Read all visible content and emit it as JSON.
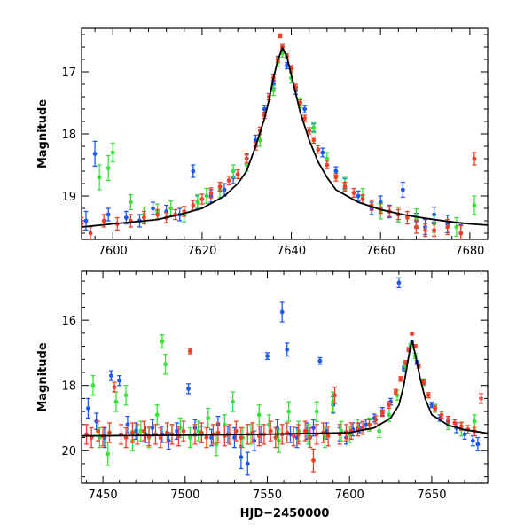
{
  "chart_data": [
    {
      "type": "scatter",
      "panel": "top",
      "title": "",
      "xlabel": "",
      "ylabel": "Magnitude",
      "xlim": [
        7593,
        7684
      ],
      "ylim": [
        19.7,
        16.3
      ],
      "y_inverted": true,
      "x_ticks": [
        7600,
        7620,
        7640,
        7660,
        7680
      ],
      "y_ticks": [
        17,
        18,
        19
      ],
      "grid": false,
      "legend": "none",
      "model_curve": {
        "name": "",
        "color": "#000000",
        "x": [
          7593,
          7600,
          7610,
          7615,
          7620,
          7625,
          7628,
          7630,
          7632,
          7634,
          7635,
          7636,
          7637,
          7638,
          7639,
          7640,
          7641,
          7642,
          7644,
          7646,
          7648,
          7650,
          7655,
          7660,
          7665,
          7670,
          7675,
          7680,
          7684
        ],
        "y": [
          19.5,
          19.45,
          19.38,
          19.3,
          19.2,
          19.0,
          18.8,
          18.6,
          18.2,
          17.75,
          17.45,
          17.1,
          16.8,
          16.62,
          16.75,
          17.05,
          17.35,
          17.65,
          18.1,
          18.45,
          18.7,
          18.9,
          19.1,
          19.22,
          19.3,
          19.36,
          19.41,
          19.45,
          19.47
        ]
      },
      "series": [
        {
          "name": "",
          "color": "#1e5af0",
          "x": [
            7594,
            7596,
            7599,
            7603,
            7606,
            7609,
            7612,
            7615,
            7618,
            7619,
            7622,
            7625,
            7627,
            7630,
            7632,
            7634,
            7636,
            7637,
            7638,
            7639,
            7641,
            7643,
            7645,
            7647,
            7650,
            7652,
            7655,
            7658,
            7660,
            7662,
            7664,
            7665,
            7668,
            7670,
            7672,
            7675,
            7678
          ],
          "y": [
            19.4,
            18.32,
            19.3,
            19.35,
            19.4,
            19.2,
            19.25,
            19.3,
            18.6,
            19.1,
            19.0,
            18.9,
            18.7,
            18.4,
            18.1,
            17.6,
            17.2,
            16.8,
            16.65,
            16.9,
            17.3,
            17.6,
            17.9,
            18.3,
            18.6,
            18.8,
            19.0,
            19.2,
            19.1,
            19.25,
            19.3,
            18.9,
            19.4,
            19.5,
            19.3,
            19.45,
            19.6
          ],
          "y_err": [
            0.15,
            0.2,
            0.1,
            0.1,
            0.1,
            0.1,
            0.1,
            0.1,
            0.1,
            0.1,
            0.1,
            0.1,
            0.1,
            0.08,
            0.08,
            0.06,
            0.06,
            0.05,
            0.05,
            0.05,
            0.06,
            0.06,
            0.06,
            0.07,
            0.07,
            0.08,
            0.08,
            0.1,
            0.1,
            0.1,
            0.12,
            0.12,
            0.12,
            0.12,
            0.12,
            0.14,
            0.14
          ]
        },
        {
          "name": "",
          "color": "#3ce03c",
          "x": [
            7597,
            7599,
            7600,
            7604,
            7607,
            7610,
            7613,
            7616,
            7619,
            7621,
            7624,
            7627,
            7630,
            7633,
            7636,
            7637,
            7638,
            7640,
            7642,
            7645,
            7648,
            7652,
            7656,
            7660,
            7664,
            7668,
            7672,
            7677,
            7681
          ],
          "y": [
            18.7,
            18.55,
            18.3,
            19.1,
            19.3,
            19.25,
            19.2,
            19.3,
            19.1,
            19.0,
            18.9,
            18.6,
            18.5,
            18.1,
            17.3,
            16.85,
            16.7,
            17.1,
            17.5,
            17.9,
            18.4,
            18.8,
            19.0,
            19.25,
            19.3,
            19.35,
            19.45,
            19.5,
            19.15
          ],
          "y_err": [
            0.2,
            0.2,
            0.15,
            0.12,
            0.12,
            0.12,
            0.12,
            0.12,
            0.12,
            0.12,
            0.12,
            0.1,
            0.1,
            0.1,
            0.08,
            0.06,
            0.06,
            0.08,
            0.08,
            0.08,
            0.1,
            0.1,
            0.12,
            0.12,
            0.12,
            0.14,
            0.14,
            0.15,
            0.15
          ]
        },
        {
          "name": "",
          "color": "#f0402a",
          "x": [
            7593,
            7595,
            7598,
            7601,
            7604,
            7607,
            7610,
            7612,
            7614,
            7616,
            7618,
            7620,
            7622,
            7624,
            7626,
            7628,
            7630,
            7632,
            7633,
            7634,
            7635,
            7636,
            7637,
            7637.5,
            7638,
            7639,
            7640,
            7641,
            7642,
            7643,
            7644,
            7645,
            7646,
            7648,
            7650,
            7652,
            7654,
            7656,
            7658,
            7660,
            7662,
            7664,
            7666,
            7668,
            7670,
            7672,
            7675,
            7678,
            7681
          ],
          "y": [
            19.45,
            19.6,
            19.4,
            19.45,
            19.4,
            19.35,
            19.3,
            19.35,
            19.3,
            19.25,
            19.15,
            19.05,
            18.95,
            18.85,
            18.75,
            18.65,
            18.4,
            18.2,
            17.95,
            17.7,
            17.4,
            17.1,
            16.8,
            16.42,
            16.6,
            16.75,
            16.95,
            17.25,
            17.5,
            17.75,
            17.95,
            18.1,
            18.25,
            18.5,
            18.7,
            18.85,
            18.95,
            19.05,
            19.15,
            19.2,
            19.25,
            19.3,
            19.35,
            19.5,
            19.55,
            19.55,
            19.5,
            19.6,
            18.4
          ],
          "y_err": [
            0.1,
            0.1,
            0.1,
            0.1,
            0.1,
            0.1,
            0.08,
            0.08,
            0.08,
            0.08,
            0.08,
            0.08,
            0.08,
            0.07,
            0.07,
            0.07,
            0.06,
            0.06,
            0.06,
            0.05,
            0.05,
            0.05,
            0.04,
            0.03,
            0.04,
            0.04,
            0.05,
            0.05,
            0.05,
            0.05,
            0.05,
            0.05,
            0.06,
            0.06,
            0.06,
            0.07,
            0.07,
            0.07,
            0.08,
            0.08,
            0.08,
            0.08,
            0.1,
            0.1,
            0.1,
            0.1,
            0.12,
            0.12,
            0.1
          ]
        }
      ]
    },
    {
      "type": "scatter",
      "panel": "bottom",
      "title": "",
      "xlabel": "HJD−2450000",
      "ylabel": "Magnitude",
      "xlim": [
        7437,
        7684
      ],
      "ylim": [
        21.0,
        14.5
      ],
      "y_inverted": true,
      "x_ticks": [
        7450,
        7500,
        7550,
        7600,
        7650
      ],
      "y_ticks": [
        16,
        18,
        20
      ],
      "grid": false,
      "legend": "none",
      "model_curve": {
        "name": "",
        "color": "#000000",
        "x": [
          7437,
          7500,
          7550,
          7600,
          7615,
          7625,
          7630,
          7633,
          7635,
          7637,
          7638,
          7640,
          7643,
          7646,
          7650,
          7660,
          7670,
          7684
        ],
        "y": [
          19.55,
          19.53,
          19.5,
          19.45,
          19.3,
          19.0,
          18.6,
          18.0,
          17.4,
          16.8,
          16.62,
          17.05,
          17.8,
          18.4,
          18.9,
          19.22,
          19.36,
          19.47
        ]
      },
      "series": [
        {
          "name": "",
          "color": "#1e5af0",
          "x": [
            7441,
            7446,
            7451,
            7455,
            7460,
            7465,
            7470,
            7476,
            7480,
            7486,
            7490,
            7495,
            7502,
            7506,
            7510,
            7516,
            7520,
            7526,
            7530,
            7534,
            7538,
            7542,
            7546,
            7550,
            7556,
            7559,
            7562,
            7564,
            7568,
            7574,
            7578,
            7582,
            7586,
            7590,
            7594,
            7598,
            7602,
            7606,
            7610,
            7615,
            7620,
            7625,
            7630,
            7633,
            7636,
            7638,
            7641,
            7645,
            7650,
            7655,
            7660,
            7665,
            7670,
            7675,
            7678
          ],
          "y": [
            18.7,
            19.1,
            19.6,
            17.7,
            17.85,
            19.2,
            19.4,
            19.5,
            19.3,
            19.5,
            19.7,
            19.4,
            18.1,
            19.3,
            19.5,
            19.6,
            19.2,
            19.5,
            19.6,
            20.2,
            20.4,
            19.7,
            19.5,
            17.1,
            19.3,
            15.75,
            16.9,
            19.5,
            19.6,
            19.4,
            19.3,
            17.25,
            19.4,
            18.6,
            19.5,
            19.6,
            19.35,
            19.3,
            19.2,
            19.0,
            18.8,
            18.5,
            14.85,
            17.5,
            16.9,
            16.7,
            17.3,
            17.9,
            18.6,
            19.0,
            19.1,
            19.3,
            19.5,
            19.7,
            19.8
          ],
          "y_err": [
            0.3,
            0.25,
            0.3,
            0.15,
            0.15,
            0.25,
            0.25,
            0.25,
            0.25,
            0.25,
            0.25,
            0.25,
            0.15,
            0.25,
            0.25,
            0.25,
            0.25,
            0.25,
            0.3,
            0.35,
            0.35,
            0.3,
            0.25,
            0.1,
            0.25,
            0.3,
            0.2,
            0.25,
            0.3,
            0.25,
            0.25,
            0.1,
            0.25,
            0.25,
            0.2,
            0.2,
            0.2,
            0.15,
            0.15,
            0.12,
            0.12,
            0.1,
            0.15,
            0.08,
            0.06,
            0.05,
            0.06,
            0.07,
            0.08,
            0.1,
            0.15,
            0.15,
            0.15,
            0.15,
            0.2
          ]
        },
        {
          "name": "",
          "color": "#3ce03c",
          "x": [
            7444,
            7448,
            7453,
            7458,
            7464,
            7468,
            7473,
            7478,
            7483,
            7486,
            7488,
            7492,
            7497,
            7503,
            7508,
            7514,
            7519,
            7524,
            7529,
            7535,
            7540,
            7545,
            7551,
            7557,
            7563,
            7569,
            7575,
            7580,
            7585,
            7590,
            7595,
            7600,
            7605,
            7612,
            7618,
            7624,
            7629,
            7634,
            7637,
            7640,
            7645,
            7652,
            7660,
            7668,
            7676
          ],
          "y": [
            18.0,
            19.6,
            20.1,
            18.5,
            18.3,
            19.7,
            19.4,
            19.6,
            18.9,
            16.65,
            17.35,
            19.5,
            19.3,
            19.6,
            19.4,
            19.0,
            19.8,
            19.2,
            18.5,
            19.6,
            19.5,
            18.9,
            19.2,
            19.7,
            18.8,
            19.4,
            19.5,
            18.8,
            19.6,
            18.5,
            19.4,
            19.5,
            19.3,
            19.2,
            19.4,
            18.9,
            18.3,
            17.4,
            16.8,
            17.1,
            17.9,
            18.7,
            19.2,
            19.35,
            19.1
          ],
          "y_err": [
            0.3,
            0.3,
            0.35,
            0.3,
            0.3,
            0.3,
            0.3,
            0.3,
            0.3,
            0.2,
            0.3,
            0.3,
            0.3,
            0.3,
            0.3,
            0.3,
            0.35,
            0.3,
            0.3,
            0.3,
            0.3,
            0.3,
            0.3,
            0.35,
            0.3,
            0.3,
            0.3,
            0.3,
            0.3,
            0.3,
            0.3,
            0.25,
            0.25,
            0.2,
            0.2,
            0.2,
            0.15,
            0.12,
            0.08,
            0.08,
            0.1,
            0.12,
            0.15,
            0.2,
            0.2
          ]
        },
        {
          "name": "",
          "color": "#f0402a",
          "x": [
            7440,
            7443,
            7447,
            7450,
            7454,
            7457,
            7461,
            7464,
            7468,
            7471,
            7475,
            7478,
            7482,
            7485,
            7489,
            7492,
            7496,
            7499,
            7503,
            7506,
            7510,
            7513,
            7517,
            7520,
            7524,
            7527,
            7531,
            7534,
            7538,
            7541,
            7545,
            7548,
            7552,
            7555,
            7559,
            7562,
            7566,
            7569,
            7573,
            7576,
            7578,
            7580,
            7584,
            7587,
            7591,
            7594,
            7598,
            7601,
            7605,
            7608,
            7612,
            7616,
            7620,
            7624,
            7628,
            7631,
            7634,
            7636,
            7638,
            7640,
            7642,
            7645,
            7648,
            7652,
            7656,
            7660,
            7664,
            7668,
            7672,
            7676,
            7680
          ],
          "y": [
            19.5,
            19.6,
            19.4,
            19.55,
            19.45,
            18.05,
            19.5,
            19.6,
            19.45,
            19.5,
            19.4,
            19.55,
            19.5,
            19.6,
            19.45,
            19.5,
            19.55,
            19.4,
            16.95,
            19.5,
            19.45,
            19.6,
            19.5,
            19.45,
            19.55,
            19.5,
            19.4,
            19.6,
            19.5,
            19.45,
            19.55,
            19.5,
            19.4,
            19.6,
            19.5,
            19.45,
            19.55,
            19.5,
            19.4,
            19.6,
            20.3,
            19.5,
            19.45,
            19.55,
            18.3,
            19.5,
            19.45,
            19.4,
            19.35,
            19.3,
            19.2,
            19.05,
            18.85,
            18.6,
            18.2,
            17.8,
            17.3,
            16.9,
            16.42,
            16.8,
            17.4,
            17.9,
            18.3,
            18.7,
            18.9,
            19.05,
            19.15,
            19.25,
            19.35,
            19.4,
            18.4
          ],
          "y_err": [
            0.3,
            0.3,
            0.3,
            0.3,
            0.3,
            0.15,
            0.3,
            0.3,
            0.3,
            0.3,
            0.3,
            0.3,
            0.3,
            0.3,
            0.3,
            0.3,
            0.3,
            0.3,
            0.08,
            0.3,
            0.3,
            0.3,
            0.3,
            0.3,
            0.3,
            0.3,
            0.3,
            0.3,
            0.3,
            0.3,
            0.3,
            0.3,
            0.3,
            0.3,
            0.3,
            0.3,
            0.3,
            0.3,
            0.3,
            0.3,
            0.35,
            0.3,
            0.3,
            0.3,
            0.25,
            0.3,
            0.25,
            0.25,
            0.2,
            0.2,
            0.15,
            0.12,
            0.1,
            0.1,
            0.08,
            0.07,
            0.06,
            0.05,
            0.03,
            0.05,
            0.06,
            0.07,
            0.08,
            0.08,
            0.1,
            0.1,
            0.1,
            0.12,
            0.12,
            0.15,
            0.15
          ]
        }
      ]
    }
  ]
}
